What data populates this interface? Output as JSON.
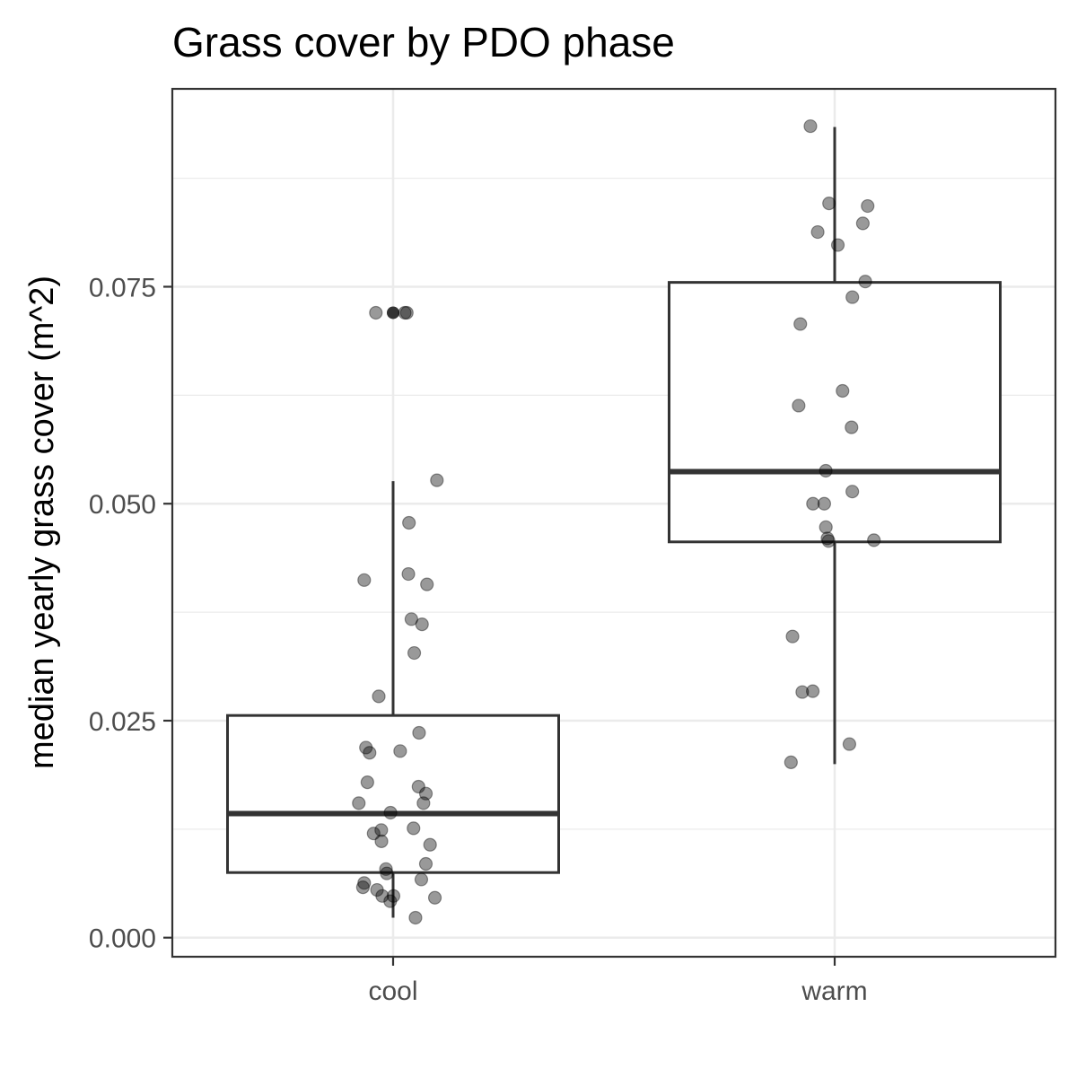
{
  "chart_data": {
    "type": "boxplot",
    "title": "Grass cover by PDO phase",
    "xlabel": "",
    "ylabel": "median yearly grass cover (m^2)",
    "ylim": [
      -0.0022,
      0.0978
    ],
    "y_ticks": [
      0.0,
      0.025,
      0.05,
      0.075
    ],
    "y_tick_labels": [
      "0.000",
      "0.025",
      "0.050",
      "0.075"
    ],
    "categories": [
      "cool",
      "warm"
    ],
    "grid": true,
    "legend": "none",
    "colors": {
      "box_line": "#333333",
      "point": "#000000",
      "grid": "#ebebeb",
      "panel_border": "#333333"
    },
    "boxes": [
      {
        "category": "cool",
        "whisker_low": 0.0023,
        "q1": 0.0075,
        "median": 0.0143,
        "q3": 0.0256,
        "whisker_high": 0.0526,
        "outliers": [
          0.072
        ]
      },
      {
        "category": "warm",
        "whisker_low": 0.02,
        "q1": 0.0456,
        "median": 0.0537,
        "q3": 0.0755,
        "whisker_high": 0.0934,
        "outliers": []
      }
    ],
    "points": [
      {
        "category": "cool",
        "y": [
          0.072,
          0.072,
          0.072,
          0.0527,
          0.0478,
          0.0419,
          0.0412,
          0.0407,
          0.0367,
          0.0361,
          0.0328,
          0.0278,
          0.0236,
          0.0219,
          0.0215,
          0.0213,
          0.0179,
          0.0174,
          0.0166,
          0.0155,
          0.0155,
          0.0144,
          0.0126,
          0.0124,
          0.012,
          0.0111,
          0.0107,
          0.0085,
          0.0079,
          0.0074,
          0.0067,
          0.0063,
          0.0058,
          0.0055,
          0.0048,
          0.0048,
          0.0046,
          0.0042,
          0.0023
        ]
      },
      {
        "category": "warm",
        "y": [
          0.0935,
          0.0846,
          0.0843,
          0.0823,
          0.0813,
          0.0798,
          0.0756,
          0.0738,
          0.0707,
          0.063,
          0.0613,
          0.0588,
          0.0538,
          0.0514,
          0.05,
          0.05,
          0.0473,
          0.046,
          0.0458,
          0.0457,
          0.0347,
          0.0284,
          0.0283,
          0.0223,
          0.0202
        ]
      }
    ]
  }
}
